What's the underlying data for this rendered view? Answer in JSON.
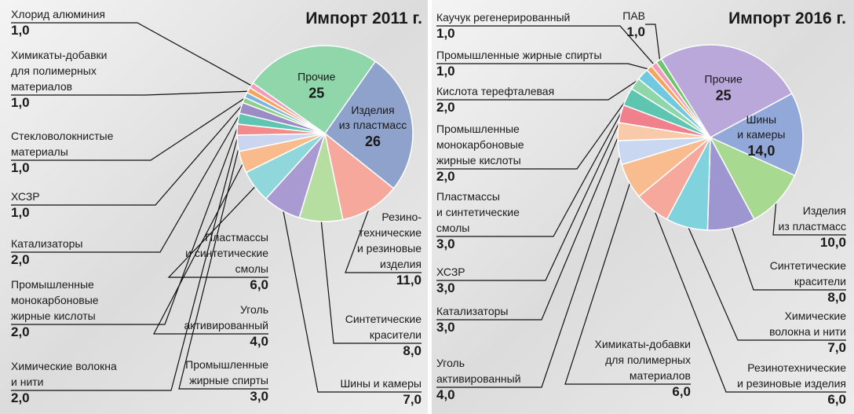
{
  "chart_data": [
    {
      "type": "pie",
      "title": "Импорт 2011 г.",
      "categories": [
        "Прочие",
        "Изделия\nиз пластмасс",
        "Резино-\nтехнические\nи резиновые\nизделия",
        "Синтетические\nкрасители",
        "Шины и камеры",
        "Пластмассы\nи синтетические\nсмолы",
        "Уголь\nактивированный",
        "Промышленные\nжирные спирты",
        "Химические волокна\nи нити",
        "Промышленные\nмонокарбоновые\nжирные кислоты",
        "Катализаторы",
        "ХСЗР",
        "Стекловолокнистые\nматериалы",
        "Химикаты-добавки\nдля полимерных\nматериалов",
        "Хлорид алюминия"
      ],
      "values": [
        25,
        26,
        11,
        8,
        7,
        6,
        4,
        3,
        2,
        2,
        2,
        1,
        1,
        1,
        1
      ],
      "value_labels": [
        "25",
        "26",
        "11,0",
        "8,0",
        "7,0",
        "6,0",
        "4,0",
        "3,0",
        "2,0",
        "2,0",
        "2,0",
        "1,0",
        "1,0",
        "1,0",
        "1,0"
      ],
      "colors": [
        "#8fd6aa",
        "#8ea2cb",
        "#f5a89b",
        "#b6dea0",
        "#a99bd2",
        "#8fd7da",
        "#f9bb8c",
        "#cbd5ef",
        "#f28b8b",
        "#5ec5b1",
        "#9d8bc6",
        "#8dd08d",
        "#7fb4e1",
        "#f7a45d",
        "#f49bb6"
      ]
    },
    {
      "type": "pie",
      "title": "Импорт 2016 г.",
      "categories": [
        "Прочие",
        "Шины\nи камеры",
        "Изделия\nиз пластмасс",
        "Синтетические\nкрасители",
        "Химические\nволокна и нити",
        "Резинотехнические\nи резиновые изделия",
        "Химикаты-добавки\nдля полимерных\nматериалов",
        "Уголь\nактивированный",
        "Катализаторы",
        "ХСЗР",
        "Пластмассы\nи синтетические\nсмолы",
        "Промышленные\nмонокарбоновые\nжирные кислоты",
        "Кислота терефталевая",
        "Промышленные жирные спирты",
        "Каучук регенерированный",
        "ПАВ"
      ],
      "values": [
        25,
        14,
        10,
        8,
        7,
        6,
        6,
        4,
        3,
        3,
        3,
        2,
        2,
        1,
        1,
        1
      ],
      "value_labels": [
        "25",
        "14,0",
        "10,0",
        "8,0",
        "7,0",
        "6,0",
        "6,0",
        "4,0",
        "3,0",
        "3,0",
        "3,0",
        "2,0",
        "2,0",
        "1,0",
        "1,0",
        "1,0"
      ],
      "colors": [
        "#b9a8d9",
        "#92a8d9",
        "#a7da90",
        "#9e96d0",
        "#80d3dc",
        "#f5a89b",
        "#f8bc8f",
        "#cad7f1",
        "#f9caa9",
        "#f0808b",
        "#5ec5b1",
        "#8fd6aa",
        "#70c9e1",
        "#f7a45d",
        "#f49bb6",
        "#6dc56d"
      ]
    }
  ]
}
